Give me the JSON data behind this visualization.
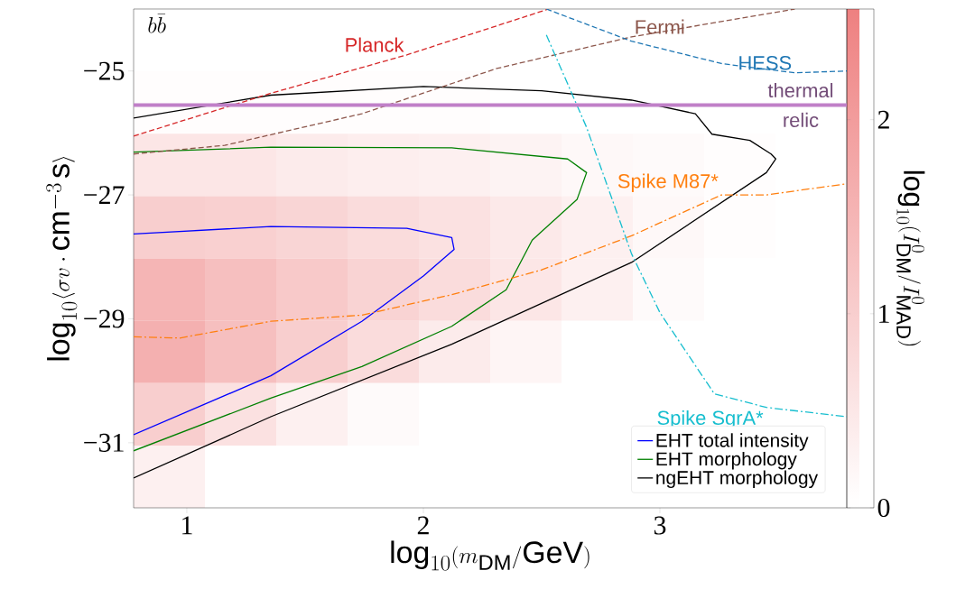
{
  "chart_data": [
    {
      "type": "heatmap",
      "color": "#ee8080",
      "clim": [
        0,
        2.57
      ],
      "cticks": [
        0,
        1,
        2
      ],
      "clabel": "\\log_{10}(I^0_{\\rm DM}/I^0_{\\rm MAD})",
      "categories": [
        null,
        null,
        null,
        null,
        null,
        null,
        null,
        null,
        null,
        null
      ],
      "y_categories": [
        null,
        null,
        null,
        null,
        null,
        null,
        null,
        null
      ],
      "cells": [
        [
          0,
          0,
          0,
          0,
          0,
          0,
          0,
          0,
          0,
          0
        ],
        [
          0.05,
          0.05,
          0.05,
          0.05,
          0.05,
          0,
          0,
          0,
          0,
          0
        ],
        [
          0.5,
          0.5,
          0.4,
          0.35,
          0.3,
          0.25,
          0.15,
          0.1,
          0.05,
          0
        ],
        [
          1.0,
          0.95,
          0.85,
          0.7,
          0.6,
          0.45,
          0.3,
          0.15,
          0.05,
          0
        ],
        [
          1.5,
          1.3,
          1.1,
          0.9,
          0.7,
          0.5,
          0.3,
          0.1,
          0,
          0
        ],
        [
          1.6,
          1.3,
          1.0,
          0.7,
          0.4,
          0.2,
          0,
          0,
          0,
          0
        ],
        [
          1.0,
          0.6,
          0.3,
          0.1,
          0,
          0,
          0,
          0,
          0,
          0
        ],
        [
          0.3,
          0,
          0,
          0,
          0,
          0,
          0,
          0,
          0,
          0
        ]
      ]
    },
    {
      "type": "line",
      "title": "b\\bar{b}",
      "xlabel": "\\log_{10}(m_{\\rm DM}/{\\rm GeV})",
      "ylabel": "\\log_{10}\\langle \\sigma v\\cdot {\\rm cm}^{-3}\\,{\\rm s}\\rangle",
      "xlim": [
        0.775,
        3.79
      ],
      "ylim": [
        -32.05,
        -24
      ],
      "xticks": [
        1,
        2,
        3
      ],
      "yticks": [
        {
          "value": -25,
          "label": "−25"
        },
        {
          "value": -27,
          "label": "−27"
        },
        {
          "value": -29,
          "label": "−29"
        },
        {
          "value": -31,
          "label": "−31"
        }
      ],
      "legend": "bottom right",
      "grid": false,
      "series": [
        {
          "name": "EHT total intensity",
          "color": "#0000ff",
          "line_style": "solid",
          "x": [
            0.775,
            1.355,
            1.93,
            2.12,
            2.13,
            2.0,
            1.74,
            1.355,
            0.775
          ],
          "values": [
            -27.63,
            -27.51,
            -27.54,
            -27.69,
            -27.88,
            -28.31,
            -29.04,
            -29.92,
            -30.87
          ]
        },
        {
          "name": "EHT morphology",
          "color": "#008000",
          "line_style": "solid",
          "x": [
            0.775,
            1.355,
            2.12,
            2.61,
            2.69,
            2.65,
            2.46,
            2.35,
            2.12,
            1.74,
            1.355,
            0.775
          ],
          "values": [
            -26.31,
            -26.23,
            -26.24,
            -26.42,
            -26.64,
            -27.07,
            -27.73,
            -28.53,
            -29.12,
            -29.77,
            -30.28,
            -31.13
          ]
        },
        {
          "name": "ngEHT morphology",
          "color": "#000000",
          "line_style": "solid",
          "x": [
            0.775,
            1.355,
            2.0,
            2.5,
            2.88,
            3.15,
            3.22,
            3.38,
            3.47,
            3.49,
            3.45,
            2.88,
            2.12,
            1.355,
            0.775
          ],
          "values": [
            -25.76,
            -25.39,
            -25.25,
            -25.32,
            -25.47,
            -25.69,
            -26.02,
            -26.12,
            -26.34,
            -26.42,
            -26.64,
            -28.09,
            -29.41,
            -30.58,
            -31.57
          ]
        },
        {
          "color": "#d62728",
          "line_style": "dashed",
          "x": [
            0.775,
            1.355,
            1.93,
            2.53
          ],
          "values": [
            -26.05,
            -25.36,
            -24.74,
            -24.0
          ]
        },
        {
          "color": "#8c564b",
          "line_style": "dashed",
          "x": [
            0.775,
            1.16,
            1.74,
            2.31,
            2.88,
            3.57
          ],
          "values": [
            -26.34,
            -26.2,
            -25.69,
            -24.96,
            -24.45,
            -24.0
          ]
        },
        {
          "color": "#1f77b4",
          "line_style": "dashed",
          "x": [
            2.52,
            2.88,
            3.26,
            3.57,
            3.79
          ],
          "values": [
            -24.0,
            -24.52,
            -24.88,
            -25.03,
            -25.0
          ]
        },
        {
          "color": "#ff7f0e",
          "line_style": "dashdot",
          "x": [
            0.775,
            0.97,
            1.355,
            1.74,
            2.12,
            2.5,
            2.88,
            3.26,
            3.45,
            3.79
          ],
          "values": [
            -29.29,
            -29.31,
            -29.04,
            -28.94,
            -28.61,
            -28.21,
            -27.66,
            -27.0,
            -27.0,
            -26.82
          ]
        },
        {
          "color": "#17becf",
          "line_style": "dashdot",
          "x": [
            2.52,
            2.69,
            2.88,
            3.0,
            3.23,
            3.45,
            3.79
          ],
          "values": [
            -24.42,
            -25.91,
            -27.95,
            -28.9,
            -30.21,
            -30.43,
            -30.58
          ]
        }
      ],
      "ref_lines": [
        {
          "axis": "y",
          "value": -25.55,
          "label": "thermal relic",
          "color": "#c080c8"
        }
      ],
      "annotations": [
        {
          "text": "Planck",
          "x": 1.93,
          "y": -24.74
        },
        {
          "text": "Fermi",
          "x": 2.88,
          "y": -24.45
        },
        {
          "text": "HESS",
          "x": 3.57,
          "y": -25.03
        },
        {
          "text": "Spike M87*",
          "x": 3.26,
          "y": -27.0
        },
        {
          "text": "Spike SgrA*",
          "x": 3.45,
          "y": -30.43
        }
      ]
    }
  ]
}
